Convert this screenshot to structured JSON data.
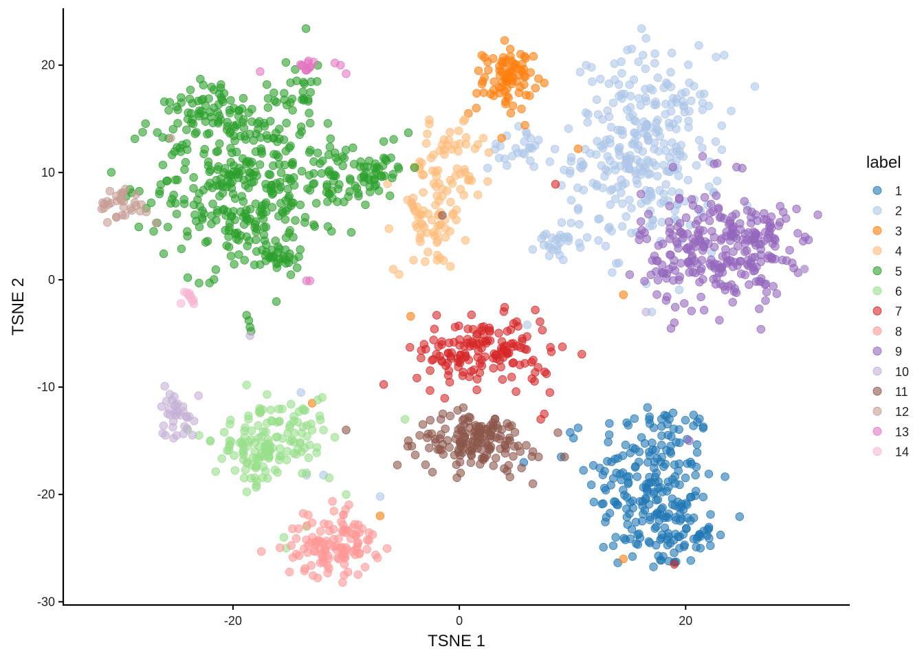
{
  "chart_data": {
    "type": "scatter",
    "title": "",
    "xlabel": "TSNE 1",
    "ylabel": "TSNE 2",
    "xlim": [
      -35,
      34.5
    ],
    "ylim": [
      -30.3,
      25.3
    ],
    "x_ticks": [
      -20,
      0,
      20
    ],
    "x_tick_labels": [
      "-20",
      "0",
      "20"
    ],
    "y_ticks": [
      -30,
      -20,
      -10,
      0,
      10,
      20
    ],
    "y_tick_labels": [
      "-30",
      "-20",
      "-10",
      "0",
      "10",
      "20"
    ],
    "grid": false,
    "legend_placement": "right",
    "legend_title": "label",
    "point_alpha": 0.6,
    "series": [
      {
        "name": "1",
        "color": "#1f77b4",
        "clusters": [
          {
            "cx": 17,
            "cy": -19,
            "sx": 2.8,
            "sy": 4.2,
            "n": 210
          },
          {
            "cx": 19.5,
            "cy": -23.5,
            "sx": 1.5,
            "sy": 1.4,
            "n": 50
          }
        ],
        "points": [
          [
            9,
            -16.5
          ],
          [
            10.5,
            -13.8
          ],
          [
            19,
            -26.3
          ]
        ]
      },
      {
        "name": "2",
        "color": "#aec7e8",
        "clusters": [
          {
            "cx": 16.5,
            "cy": 12,
            "sx": 3.2,
            "sy": 4.5,
            "n": 300
          },
          {
            "cx": 5,
            "cy": 12.3,
            "sx": 1.2,
            "sy": 1.0,
            "n": 25
          },
          {
            "cx": 9,
            "cy": 3.8,
            "sx": 1.1,
            "sy": 1.0,
            "n": 28
          }
        ],
        "points": [
          [
            16.5,
            22.5
          ],
          [
            -14,
            -10.5
          ],
          [
            -13.5,
            -18.2
          ],
          [
            -12,
            -18.2
          ],
          [
            -7,
            -20.2
          ],
          [
            6,
            -4.2
          ],
          [
            17,
            -3
          ],
          [
            8,
            11
          ],
          [
            10.5,
            6.5
          ]
        ]
      },
      {
        "name": "3",
        "color": "#ff7f0e",
        "clusters": [
          {
            "cx": 4.3,
            "cy": 18.6,
            "sx": 1.1,
            "sy": 1.4,
            "n": 80
          }
        ],
        "points": [
          [
            4,
            22.3
          ],
          [
            4.5,
            21.5
          ],
          [
            2.5,
            20.3
          ],
          [
            0.8,
            15.5
          ],
          [
            1.5,
            16
          ],
          [
            10.5,
            12.2
          ],
          [
            14.5,
            -1.4
          ],
          [
            -7,
            -22
          ],
          [
            -13,
            -11.5
          ],
          [
            14.5,
            -26
          ],
          [
            -4.3,
            -3.4
          ]
        ]
      },
      {
        "name": "4",
        "color": "#ffbb78",
        "clusters": [
          {
            "cx": -2.5,
            "cy": 6,
            "sx": 1.6,
            "sy": 2.6,
            "n": 75
          },
          {
            "cx": -1,
            "cy": 12.5,
            "sx": 1.6,
            "sy": 1.0,
            "n": 28
          },
          {
            "cx": 0.5,
            "cy": 9.2,
            "sx": 0.9,
            "sy": 0.8,
            "n": 14
          }
        ],
        "points": [
          [
            -4,
            10.5
          ],
          [
            -3.5,
            11
          ]
        ]
      },
      {
        "name": "5",
        "color": "#2ca02c",
        "clusters": [
          {
            "cx": -19.5,
            "cy": 9,
            "sx": 3.6,
            "sy": 4.2,
            "n": 320
          },
          {
            "cx": -22,
            "cy": 16.5,
            "sx": 1.8,
            "sy": 1.4,
            "n": 45
          },
          {
            "cx": -14.5,
            "cy": 17,
            "sx": 1.4,
            "sy": 1.5,
            "n": 30
          },
          {
            "cx": -11,
            "cy": 9.5,
            "sx": 2.2,
            "sy": 2.2,
            "n": 75
          },
          {
            "cx": -7,
            "cy": 10.5,
            "sx": 1.1,
            "sy": 1.0,
            "n": 30
          },
          {
            "cx": -16,
            "cy": 2,
            "sx": 1.0,
            "sy": 0.6,
            "n": 25
          }
        ],
        "points": [
          [
            -18.8,
            -3.3
          ],
          [
            -18.6,
            -3.8
          ],
          [
            -18.5,
            -4.4
          ],
          [
            -18.4,
            -4.8
          ],
          [
            -26.7,
            5.3
          ],
          [
            -26.5,
            8
          ],
          [
            -26.2,
            10.7
          ],
          [
            -23,
            -0.3
          ],
          [
            -24,
            0.2
          ],
          [
            -4.5,
            13.7
          ],
          [
            -14.5,
            19.6
          ],
          [
            -7.5,
            9.8
          ]
        ]
      },
      {
        "name": "6",
        "color": "#98df8a",
        "clusters": [
          {
            "cx": -18,
            "cy": -16,
            "sx": 1.8,
            "sy": 1.6,
            "n": 95
          },
          {
            "cx": -15,
            "cy": -12.5,
            "sx": 1.8,
            "sy": 1.2,
            "n": 30
          },
          {
            "cx": -14,
            "cy": -15,
            "sx": 1.2,
            "sy": 1.2,
            "n": 20
          }
        ],
        "points": [
          [
            -18.8,
            -9.8
          ],
          [
            -23,
            -14.5
          ],
          [
            -24,
            -14
          ],
          [
            -22,
            -15
          ],
          [
            -13,
            -14
          ],
          [
            -12,
            -14
          ],
          [
            -13.5,
            -18
          ],
          [
            -15.5,
            -24
          ],
          [
            -15.3,
            -25
          ],
          [
            -10,
            -20
          ],
          [
            -13.5,
            -23
          ],
          [
            -4.8,
            -13
          ]
        ]
      },
      {
        "name": "7",
        "color": "#d62728",
        "clusters": [
          {
            "cx": 2.2,
            "cy": -6.8,
            "sx": 3.0,
            "sy": 1.6,
            "n": 150
          }
        ],
        "points": [
          [
            8.5,
            8.9
          ],
          [
            8,
            -10.5
          ],
          [
            7.5,
            -12.5
          ],
          [
            7.2,
            -13
          ],
          [
            19,
            -26.5
          ],
          [
            -2,
            -3.3
          ]
        ]
      },
      {
        "name": "8",
        "color": "#ff9896",
        "clusters": [
          {
            "cx": -11.5,
            "cy": -25,
            "sx": 2.0,
            "sy": 1.3,
            "n": 95
          },
          {
            "cx": -10,
            "cy": -22.5,
            "sx": 0.8,
            "sy": 1.2,
            "n": 22
          }
        ],
        "points": []
      },
      {
        "name": "9",
        "color": "#9467bd",
        "clusters": [
          {
            "cx": 22.5,
            "cy": 2.8,
            "sx": 3.2,
            "sy": 2.8,
            "n": 235
          },
          {
            "cx": 27,
            "cy": 3.5,
            "sx": 1.8,
            "sy": 1.6,
            "n": 45
          }
        ],
        "points": [
          [
            21.5,
            11.5
          ],
          [
            22.5,
            10.8
          ],
          [
            24.5,
            10.5
          ],
          [
            25,
            10.4
          ],
          [
            30.5,
            1
          ],
          [
            20.3,
            -15
          ],
          [
            19,
            -4
          ]
        ]
      },
      {
        "name": "10",
        "color": "#c5b0d5",
        "clusters": [
          {
            "cx": -25,
            "cy": -12.3,
            "sx": 0.8,
            "sy": 1.3,
            "n": 35
          }
        ],
        "points": [
          [
            -18.5,
            -5.2
          ],
          [
            16.5,
            -3
          ],
          [
            30.5,
            1
          ]
        ]
      },
      {
        "name": "11",
        "color": "#8c564b",
        "clusters": [
          {
            "cx": 1.5,
            "cy": -15,
            "sx": 2.6,
            "sy": 1.3,
            "n": 150
          }
        ],
        "points": [
          [
            -4.5,
            -15
          ],
          [
            -3.5,
            -14.5
          ],
          [
            -4.2,
            -15.5
          ],
          [
            6.5,
            -16
          ],
          [
            7,
            -16.5
          ],
          [
            -10,
            -14
          ],
          [
            -1.5,
            6
          ],
          [
            9.3,
            -16.5
          ],
          [
            6.5,
            -19
          ]
        ]
      },
      {
        "name": "12",
        "color": "#c49c94",
        "clusters": [
          {
            "cx": -30,
            "cy": 7,
            "sx": 0.9,
            "sy": 0.8,
            "n": 30
          }
        ],
        "points": [
          [
            -26.8,
            5.3
          ],
          [
            -25.5,
            13.2
          ],
          [
            -28.2,
            6.4
          ]
        ]
      },
      {
        "name": "13",
        "color": "#e377c2",
        "clusters": [
          {
            "cx": -13.5,
            "cy": 19.8,
            "sx": 0.6,
            "sy": 0.4,
            "n": 12
          }
        ],
        "points": [
          [
            -11,
            20.2
          ],
          [
            -10.5,
            20
          ],
          [
            -10,
            19.2
          ],
          [
            -17.6,
            19.4
          ],
          [
            -13.5,
            -0.1
          ],
          [
            -13.2,
            -0.1
          ]
        ]
      },
      {
        "name": "14",
        "color": "#f7b6d2",
        "clusters": [
          {
            "cx": -24,
            "cy": -1.5,
            "sx": 0.5,
            "sy": 0.4,
            "n": 10
          }
        ],
        "points": [
          [
            -24.6,
            -2.2
          ]
        ]
      }
    ]
  }
}
